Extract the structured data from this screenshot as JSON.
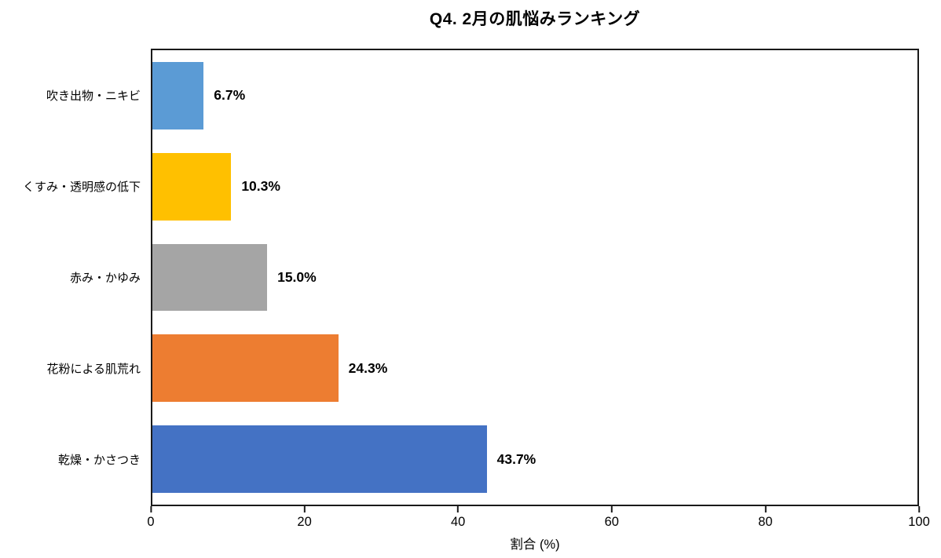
{
  "chart_data": {
    "type": "bar",
    "orientation": "horizontal",
    "title": "Q4. 2月の肌悩みランキング",
    "xlabel": "割合 (%)",
    "categories": [
      "吹き出物・ニキビ",
      "くすみ・透明感の低下",
      "赤み・かゆみ",
      "花粉による肌荒れ",
      "乾燥・かさつき"
    ],
    "values": [
      6.7,
      10.3,
      15.0,
      24.3,
      43.7
    ],
    "value_labels": [
      "6.7%",
      "10.3%",
      "15.0%",
      "24.3%",
      "43.7%"
    ],
    "bar_colors": [
      "#5B9BD5",
      "#FFC000",
      "#A5A5A5",
      "#ED7D31",
      "#4472C4"
    ],
    "xlim": [
      0,
      100
    ],
    "x_ticks": [
      0,
      20,
      40,
      60,
      80,
      100
    ],
    "grid": false,
    "legend_position": "none",
    "plot_border_color": "#1a1a1a",
    "background_color": "#ffffff"
  }
}
